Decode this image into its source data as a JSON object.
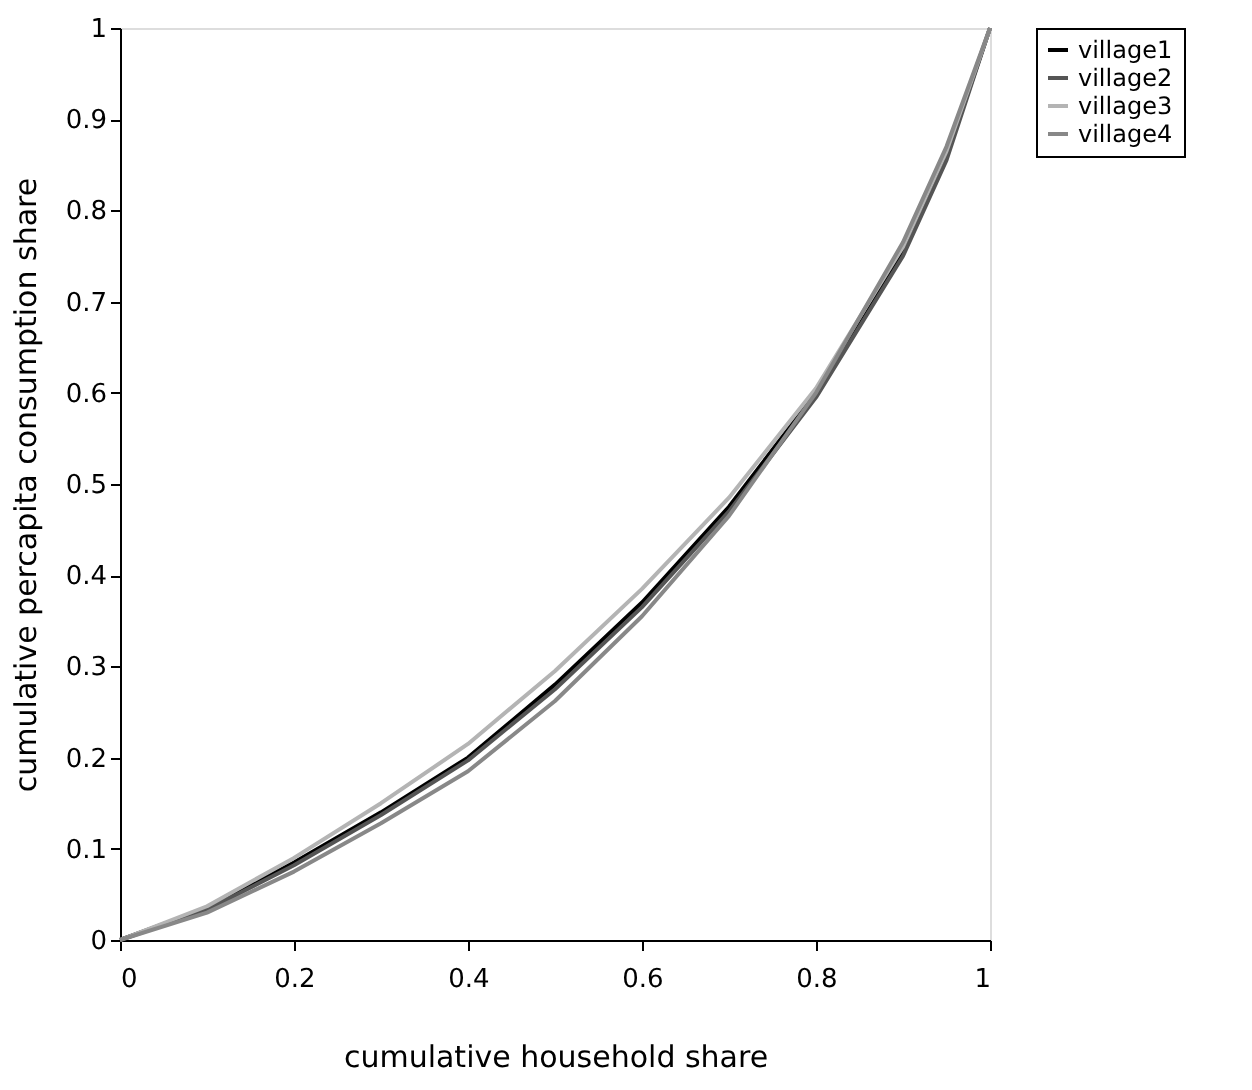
{
  "chart_data": {
    "type": "line",
    "xlabel": "cumulative household share",
    "ylabel": "cumulative percapita consumption share",
    "x": [
      0,
      0.1,
      0.2,
      0.3,
      0.4,
      0.5,
      0.6,
      0.7,
      0.8,
      0.9,
      0.95,
      1
    ],
    "series": [
      {
        "name": "village1",
        "color": "#000000",
        "values": [
          0,
          0.035,
          0.085,
          0.14,
          0.2,
          0.28,
          0.37,
          0.475,
          0.6,
          0.755,
          0.86,
          1
        ]
      },
      {
        "name": "village2",
        "color": "#555555",
        "values": [
          0,
          0.033,
          0.082,
          0.137,
          0.197,
          0.275,
          0.365,
          0.47,
          0.595,
          0.75,
          0.855,
          1
        ]
      },
      {
        "name": "village3",
        "color": "#b4b4b4",
        "values": [
          0,
          0.037,
          0.09,
          0.15,
          0.215,
          0.295,
          0.385,
          0.485,
          0.605,
          0.76,
          0.865,
          1
        ]
      },
      {
        "name": "village4",
        "color": "#888888",
        "values": [
          0,
          0.03,
          0.075,
          0.128,
          0.185,
          0.262,
          0.355,
          0.465,
          0.6,
          0.765,
          0.87,
          1
        ]
      }
    ],
    "xlim": [
      0,
      1
    ],
    "ylim": [
      0,
      1
    ],
    "xticks": [
      0,
      0.2,
      0.4,
      0.6,
      0.8,
      1
    ],
    "yticks": [
      0,
      0.1,
      0.2,
      0.3,
      0.4,
      0.5,
      0.6,
      0.7,
      0.8,
      0.9,
      1
    ],
    "grid": false,
    "legend": "right",
    "marker": "none",
    "line_style": "solid"
  }
}
